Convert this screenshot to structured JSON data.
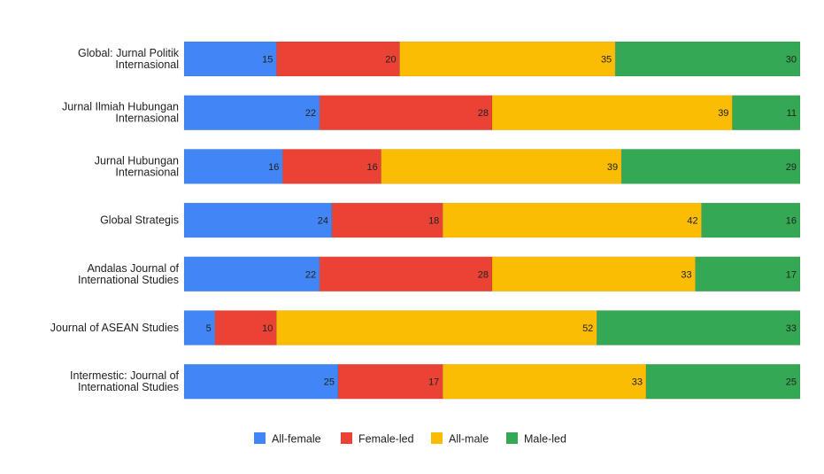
{
  "chart_data": {
    "type": "bar",
    "orientation": "horizontal",
    "stacked": true,
    "categories": [
      [
        "Global: Jurnal Politik",
        "Internasional"
      ],
      [
        "Jurnal Ilmiah Hubungan",
        "Internasional"
      ],
      [
        "Jurnal Hubungan",
        "Internasional"
      ],
      [
        "Global Strategis"
      ],
      [
        "Andalas Journal of",
        "International Studies"
      ],
      [
        "Journal of ASEAN Studies"
      ],
      [
        "Intermestic: Journal of",
        "International Studies"
      ]
    ],
    "series": [
      {
        "name": "All-female",
        "color": "#4285F4",
        "values": [
          15,
          22,
          16,
          24,
          22,
          5,
          25
        ]
      },
      {
        "name": "Female-led",
        "color": "#EA4335",
        "values": [
          20,
          28,
          16,
          18,
          28,
          10,
          17
        ]
      },
      {
        "name": "All-male",
        "color": "#FBBC04",
        "values": [
          35,
          39,
          39,
          42,
          33,
          52,
          33
        ]
      },
      {
        "name": "Male-led",
        "color": "#34A853",
        "values": [
          30,
          11,
          29,
          16,
          17,
          33,
          25
        ]
      }
    ],
    "xlim": [
      0,
      100
    ],
    "grid": false,
    "legend": "bottom"
  }
}
